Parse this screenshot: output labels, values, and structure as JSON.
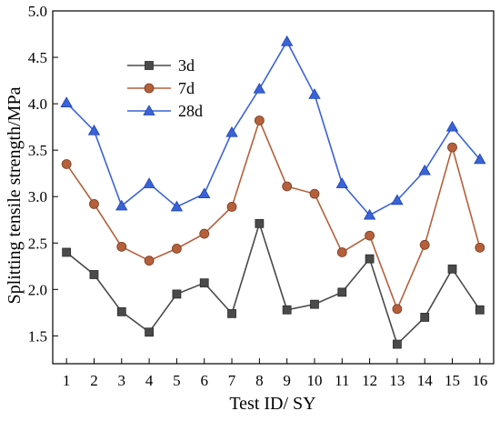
{
  "chart_data": {
    "type": "line",
    "xlabel": "Test ID/ SY",
    "ylabel": "Splitting tensile strength/MPa",
    "x": [
      1,
      2,
      3,
      4,
      5,
      6,
      7,
      8,
      9,
      10,
      11,
      12,
      13,
      14,
      15,
      16
    ],
    "xlim": [
      0.5,
      16.5
    ],
    "ylim": [
      1.2,
      5.0
    ],
    "yticks": [
      "1.5",
      "2.0",
      "2.5",
      "3.0",
      "3.5",
      "4.0",
      "4.5",
      "5.0"
    ],
    "grid": false,
    "legend_position": "top-left",
    "series": [
      {
        "name": "3d",
        "color": "#4a4a4a",
        "marker": "square",
        "values": [
          2.4,
          2.16,
          1.76,
          1.54,
          1.95,
          2.07,
          1.74,
          2.71,
          1.78,
          1.84,
          1.97,
          2.33,
          1.41,
          1.7,
          2.22,
          1.78
        ]
      },
      {
        "name": "7d",
        "color": "#b5603b",
        "marker": "circle",
        "values": [
          3.35,
          2.92,
          2.46,
          2.31,
          2.44,
          2.6,
          2.89,
          3.82,
          3.11,
          3.03,
          2.4,
          2.58,
          1.79,
          2.48,
          3.53,
          2.45
        ]
      },
      {
        "name": "28d",
        "color": "#3a63d8",
        "marker": "triangle",
        "values": [
          4.01,
          3.71,
          2.9,
          3.14,
          2.89,
          3.03,
          3.69,
          4.16,
          4.67,
          4.1,
          3.14,
          2.8,
          2.96,
          3.28,
          3.75,
          3.4
        ]
      }
    ]
  }
}
